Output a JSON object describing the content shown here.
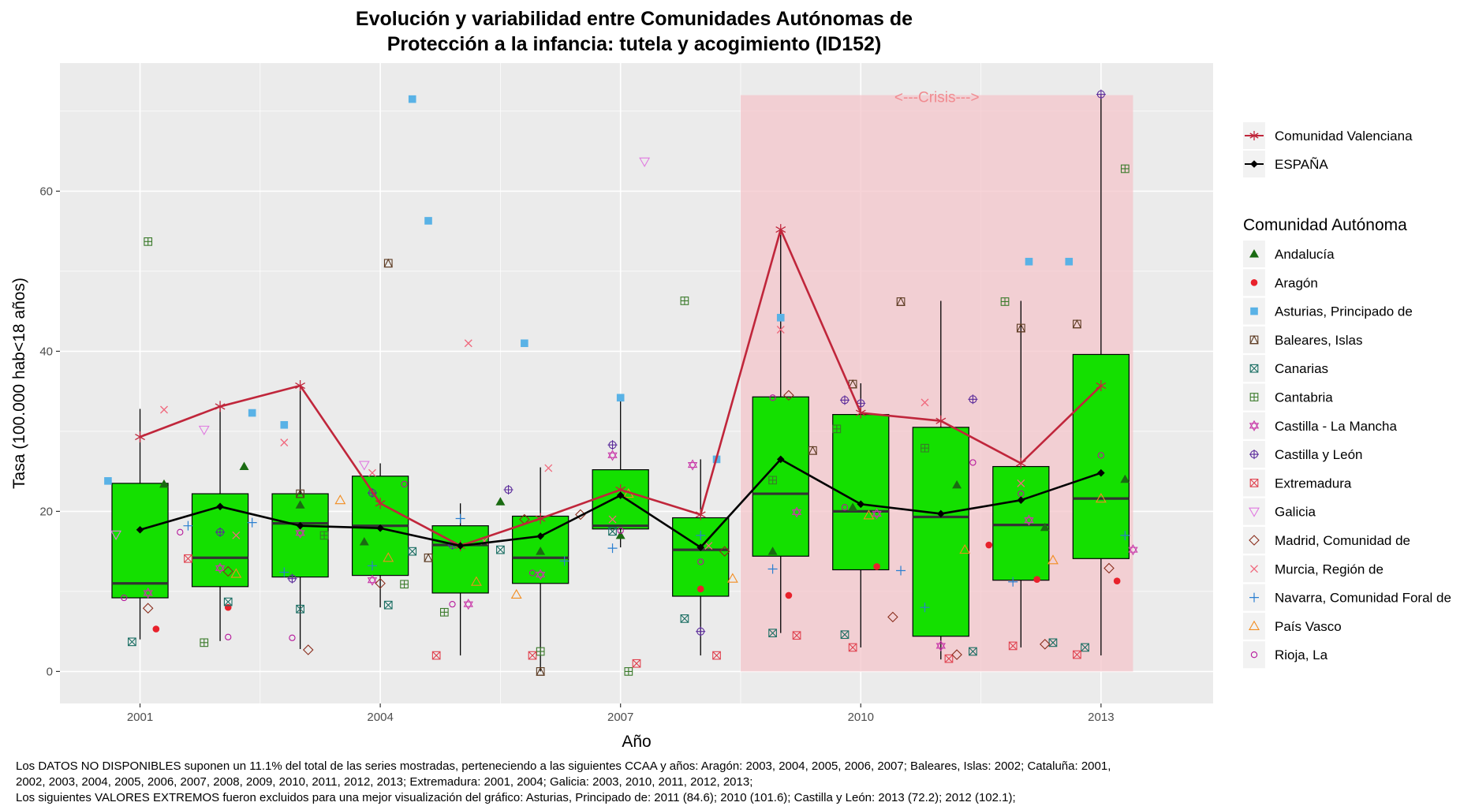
{
  "chart_data": {
    "type": "box",
    "title_line1": "Evolución y variabilidad entre Comunidades Autónomas de",
    "title_line2": "Protección a la infancia: tutela y acogimiento (ID152)",
    "xlabel": "Año",
    "ylabel": "Tasa (100.000 hab<18 años)",
    "x_ticks": [
      2001,
      2004,
      2007,
      2010,
      2013
    ],
    "y_ticks": [
      0,
      20,
      40,
      60
    ],
    "xlim": [
      2000,
      2014.4
    ],
    "ylim": [
      -4,
      76
    ],
    "grid": true,
    "legend_position": "right",
    "crisis": {
      "label": "<---Crisis--->",
      "x_start": 2008.5,
      "x_end": 2013.4,
      "y_top": 72,
      "color": "#f4c6cb"
    },
    "boxes": [
      {
        "x": 2001,
        "q1": 9.2,
        "median": 11.0,
        "q3": 23.5,
        "whisker_low": 4.0,
        "whisker_high": 32.8
      },
      {
        "x": 2002,
        "q1": 10.6,
        "median": 14.2,
        "q3": 22.2,
        "whisker_low": 3.8,
        "whisker_high": 33.2
      },
      {
        "x": 2003,
        "q1": 11.8,
        "median": 18.5,
        "q3": 22.2,
        "whisker_low": 2.8,
        "whisker_high": 35.8
      },
      {
        "x": 2004,
        "q1": 12.0,
        "median": 18.2,
        "q3": 24.4,
        "whisker_low": 8.0,
        "whisker_high": 26.0
      },
      {
        "x": 2005,
        "q1": 9.8,
        "median": 15.8,
        "q3": 18.2,
        "whisker_low": 2.0,
        "whisker_high": 21.0
      },
      {
        "x": 2006,
        "q1": 11.0,
        "median": 14.2,
        "q3": 19.4,
        "whisker_low": 0.0,
        "whisker_high": 25.5
      },
      {
        "x": 2007,
        "q1": 17.8,
        "median": 18.2,
        "q3": 25.2,
        "whisker_low": 15.5,
        "whisker_high": 34.2
      },
      {
        "x": 2008,
        "q1": 9.4,
        "median": 15.2,
        "q3": 19.2,
        "whisker_low": 2.0,
        "whisker_high": 26.5
      },
      {
        "x": 2009,
        "q1": 14.4,
        "median": 22.2,
        "q3": 34.3,
        "whisker_low": 4.8,
        "whisker_high": 55.0
      },
      {
        "x": 2010,
        "q1": 12.7,
        "median": 20.0,
        "q3": 32.1,
        "whisker_low": 3.0,
        "whisker_high": 36.0
      },
      {
        "x": 2011,
        "q1": 4.4,
        "median": 19.3,
        "q3": 30.5,
        "whisker_low": 1.5,
        "whisker_high": 46.3
      },
      {
        "x": 2012,
        "q1": 11.4,
        "median": 18.3,
        "q3": 25.6,
        "whisker_low": 3.0,
        "whisker_high": 46.3
      },
      {
        "x": 2013,
        "q1": 14.1,
        "median": 21.6,
        "q3": 39.6,
        "whisker_low": 2.0,
        "whisker_high": 72.0
      }
    ],
    "espana_line": {
      "name": "ESPAÑA",
      "color": "#000000",
      "x": [
        2001,
        2002,
        2003,
        2004,
        2005,
        2006,
        2007,
        2008,
        2009,
        2010,
        2011,
        2012,
        2013
      ],
      "y": [
        17.7,
        20.6,
        18.2,
        17.9,
        15.7,
        16.9,
        22.0,
        15.5,
        26.5,
        20.9,
        19.7,
        21.4,
        24.8
      ]
    },
    "valenciana_line": {
      "name": "Comunidad Valenciana",
      "color": "#c0263b",
      "x": [
        2001,
        2002,
        2003,
        2004,
        2005,
        2006,
        2007,
        2008,
        2009,
        2010,
        2011,
        2012,
        2013
      ],
      "y": [
        29.3,
        33.1,
        35.7,
        21.0,
        15.7,
        19.1,
        22.7,
        19.6,
        55.2,
        32.3,
        31.3,
        26.0,
        35.7
      ]
    },
    "legend_series": [
      {
        "name": "Andalucía",
        "shape": "triangle-filled",
        "color": "#1a6b12"
      },
      {
        "name": "Aragón",
        "shape": "circle-filled",
        "color": "#e8212b"
      },
      {
        "name": "Asturias, Principado de",
        "shape": "square-filled",
        "color": "#59b2e6"
      },
      {
        "name": "Baleares, Islas",
        "shape": "square-triangle",
        "color": "#5c3a21"
      },
      {
        "name": "Canarias",
        "shape": "square-x",
        "color": "#1a6e63"
      },
      {
        "name": "Cantabria",
        "shape": "square-plus",
        "color": "#3a7a2a"
      },
      {
        "name": "Castilla - La Mancha",
        "shape": "star-david",
        "color": "#c93aa9"
      },
      {
        "name": "Castilla y León",
        "shape": "circle-plus",
        "color": "#5a2a9a"
      },
      {
        "name": "Extremadura",
        "shape": "square-cross",
        "color": "#e0424f"
      },
      {
        "name": "Galicia",
        "shape": "triangle-down",
        "color": "#e07ae0"
      },
      {
        "name": "Madrid, Comunidad de",
        "shape": "diamond",
        "color": "#8a2d1c"
      },
      {
        "name": "Murcia, Región de",
        "shape": "x",
        "color": "#f0687c"
      },
      {
        "name": "Navarra, Comunidad Foral de",
        "shape": "plus",
        "color": "#2b7fd1"
      },
      {
        "name": "País Vasco",
        "shape": "triangle-open",
        "color": "#f28c1f"
      },
      {
        "name": "Rioja, La",
        "shape": "circle-open",
        "color": "#b5169a"
      }
    ],
    "legend_title": "Comunidad Autónoma",
    "legend_lines": [
      {
        "name": "Comunidad Valenciana",
        "shape": "asterisk",
        "color": "#c0263b"
      },
      {
        "name": "ESPAÑA",
        "shape": "diamond-filled",
        "color": "#000000"
      }
    ],
    "points": [
      {
        "series": "Andalucía",
        "values": [
          [
            2001.3,
            23.4
          ],
          [
            2002.3,
            25.6
          ],
          [
            2003.0,
            20.8
          ],
          [
            2003.8,
            16.2
          ],
          [
            2005.5,
            21.2
          ],
          [
            2006.0,
            15.0
          ],
          [
            2007.0,
            17.0
          ],
          [
            2008.9,
            15.0
          ],
          [
            2009.9,
            20.5
          ],
          [
            2011.2,
            23.3
          ],
          [
            2012.3,
            18.0
          ],
          [
            2013.3,
            24.0
          ]
        ]
      },
      {
        "series": "Aragón",
        "values": [
          [
            2001.2,
            5.3
          ],
          [
            2002.1,
            8.0
          ],
          [
            2008.0,
            10.3
          ],
          [
            2009.1,
            9.5
          ],
          [
            2010.2,
            13.1
          ],
          [
            2011.6,
            15.8
          ],
          [
            2012.2,
            11.5
          ],
          [
            2013.2,
            11.3
          ]
        ]
      },
      {
        "series": "Asturias, Principado de",
        "values": [
          [
            2000.6,
            23.8
          ],
          [
            2002.4,
            32.3
          ],
          [
            2002.8,
            30.8
          ],
          [
            2004.4,
            71.5
          ],
          [
            2004.6,
            56.3
          ],
          [
            2005.8,
            41.0
          ],
          [
            2007.0,
            34.2
          ],
          [
            2008.2,
            26.5
          ],
          [
            2009.0,
            44.2
          ],
          [
            2012.1,
            51.2
          ],
          [
            2012.6,
            51.2
          ]
        ]
      },
      {
        "series": "Baleares, Islas",
        "values": [
          [
            2003.0,
            22.2
          ],
          [
            2004.1,
            51.0
          ],
          [
            2004.6,
            14.2
          ],
          [
            2006.0,
            0.0
          ],
          [
            2009.4,
            27.6
          ],
          [
            2009.9,
            35.9
          ],
          [
            2010.5,
            46.2
          ],
          [
            2012.0,
            42.9
          ],
          [
            2012.7,
            43.4
          ]
        ]
      },
      {
        "series": "Canarias",
        "values": [
          [
            2000.9,
            3.7
          ],
          [
            2002.1,
            8.7
          ],
          [
            2003.0,
            7.8
          ],
          [
            2004.1,
            8.3
          ],
          [
            2004.4,
            15.0
          ],
          [
            2005.5,
            15.2
          ],
          [
            2006.9,
            17.5
          ],
          [
            2007.8,
            6.6
          ],
          [
            2008.9,
            4.8
          ],
          [
            2009.8,
            4.6
          ],
          [
            2011.4,
            2.5
          ],
          [
            2012.4,
            3.6
          ],
          [
            2012.8,
            3.0
          ]
        ]
      },
      {
        "series": "Cantabria",
        "values": [
          [
            2001.1,
            53.7
          ],
          [
            2001.8,
            3.6
          ],
          [
            2003.3,
            17.0
          ],
          [
            2004.3,
            10.9
          ],
          [
            2004.8,
            7.4
          ],
          [
            2006.0,
            2.5
          ],
          [
            2007.1,
            0.0
          ],
          [
            2007.8,
            46.3
          ],
          [
            2008.9,
            23.9
          ],
          [
            2009.7,
            30.3
          ],
          [
            2010.8,
            27.9
          ],
          [
            2011.8,
            46.2
          ],
          [
            2013.3,
            62.8
          ]
        ]
      },
      {
        "series": "Castilla - La Mancha",
        "values": [
          [
            2001.1,
            9.8
          ],
          [
            2002.0,
            12.9
          ],
          [
            2003.0,
            17.3
          ],
          [
            2003.9,
            11.4
          ],
          [
            2005.1,
            8.4
          ],
          [
            2006.0,
            12.1
          ],
          [
            2006.9,
            27.0
          ],
          [
            2007.9,
            25.8
          ],
          [
            2009.2,
            19.9
          ],
          [
            2010.2,
            19.7
          ],
          [
            2011.0,
            3.2
          ],
          [
            2012.1,
            18.9
          ],
          [
            2013.4,
            15.2
          ]
        ]
      },
      {
        "series": "Castilla y León",
        "values": [
          [
            2002.0,
            17.4
          ],
          [
            2002.9,
            11.6
          ],
          [
            2003.9,
            22.3
          ],
          [
            2004.9,
            15.8
          ],
          [
            2005.6,
            22.7
          ],
          [
            2006.9,
            28.3
          ],
          [
            2008.0,
            5.0
          ],
          [
            2009.8,
            33.9
          ],
          [
            2010.0,
            33.5
          ],
          [
            2011.4,
            34.0
          ],
          [
            2013.0,
            72.1
          ]
        ]
      },
      {
        "series": "Extremadura",
        "values": [
          [
            2001.6,
            14.1
          ],
          [
            2004.7,
            2.0
          ],
          [
            2005.9,
            2.0
          ],
          [
            2007.2,
            1.0
          ],
          [
            2008.2,
            2.0
          ],
          [
            2009.2,
            4.5
          ],
          [
            2009.9,
            3.0
          ],
          [
            2011.1,
            1.6
          ],
          [
            2011.9,
            3.2
          ],
          [
            2012.7,
            2.1
          ]
        ]
      },
      {
        "series": "Galicia",
        "values": [
          [
            2000.7,
            17.1
          ],
          [
            2001.8,
            30.2
          ],
          [
            2003.8,
            25.8
          ],
          [
            2007.3,
            63.7
          ]
        ]
      },
      {
        "series": "Madrid, Comunidad de",
        "values": [
          [
            2001.1,
            7.9
          ],
          [
            2002.1,
            12.5
          ],
          [
            2003.1,
            2.7
          ],
          [
            2004.0,
            11.0
          ],
          [
            2005.8,
            19.0
          ],
          [
            2006.5,
            19.6
          ],
          [
            2008.3,
            15.0
          ],
          [
            2009.1,
            34.5
          ],
          [
            2010.4,
            6.8
          ],
          [
            2011.2,
            2.1
          ],
          [
            2012.3,
            3.4
          ],
          [
            2013.1,
            12.9
          ]
        ]
      },
      {
        "series": "Murcia, Región de",
        "values": [
          [
            2001.3,
            32.7
          ],
          [
            2002.2,
            17.0
          ],
          [
            2002.8,
            28.6
          ],
          [
            2003.9,
            24.8
          ],
          [
            2005.1,
            41.0
          ],
          [
            2005.3,
            16.3
          ],
          [
            2006.1,
            25.4
          ],
          [
            2006.9,
            19.0
          ],
          [
            2008.1,
            15.7
          ],
          [
            2009.0,
            42.7
          ],
          [
            2010.8,
            33.6
          ],
          [
            2012.0,
            23.5
          ]
        ]
      },
      {
        "series": "Navarra, Comunidad Foral de",
        "values": [
          [
            2001.6,
            18.2
          ],
          [
            2002.4,
            18.6
          ],
          [
            2002.8,
            12.4
          ],
          [
            2003.9,
            13.2
          ],
          [
            2005.0,
            19.1
          ],
          [
            2006.3,
            13.8
          ],
          [
            2006.9,
            15.4
          ],
          [
            2008.0,
            17.0
          ],
          [
            2008.9,
            12.8
          ],
          [
            2010.5,
            12.6
          ],
          [
            2010.8,
            8.0
          ],
          [
            2011.9,
            11.2
          ],
          [
            2013.3,
            17.0
          ]
        ]
      },
      {
        "series": "País Vasco",
        "values": [
          [
            2002.2,
            12.2
          ],
          [
            2003.5,
            21.4
          ],
          [
            2004.1,
            14.2
          ],
          [
            2005.2,
            11.2
          ],
          [
            2005.7,
            9.6
          ],
          [
            2007.1,
            22.2
          ],
          [
            2008.4,
            11.6
          ],
          [
            2010.1,
            19.5
          ],
          [
            2011.3,
            15.2
          ],
          [
            2012.4,
            13.9
          ],
          [
            2013.0,
            21.6
          ]
        ]
      },
      {
        "series": "Rioja, La",
        "values": [
          [
            2000.8,
            9.2
          ],
          [
            2001.5,
            17.4
          ],
          [
            2002.1,
            4.3
          ],
          [
            2002.9,
            4.2
          ],
          [
            2004.3,
            23.4
          ],
          [
            2004.9,
            8.4
          ],
          [
            2005.9,
            12.3
          ],
          [
            2007.0,
            17.6
          ],
          [
            2008.0,
            13.7
          ],
          [
            2008.9,
            34.2
          ],
          [
            2009.8,
            20.5
          ],
          [
            2011.4,
            26.1
          ],
          [
            2012.0,
            22.2
          ],
          [
            2013.0,
            27.0
          ]
        ]
      }
    ]
  },
  "footnote": {
    "line1": "Los DATOS NO DISPONIBLES suponen un 11.1% del total de las series mostradas, perteneciendo a las siguientes CCAA y años: Aragón: 2003, 2004, 2005, 2006, 2007; Baleares, Islas: 2002; Cataluña: 2001,",
    "line2": " 2002, 2003, 2004, 2005, 2006, 2007, 2008, 2009, 2010, 2011, 2012, 2013; Extremadura: 2001, 2004; Galicia: 2003, 2010, 2011, 2012, 2013;",
    "line3": "Los siguientes VALORES EXTREMOS fueron excluidos para una mejor visualización del gráfico: Asturias, Principado de: 2011 (84.6); 2010 (101.6); Castilla y León: 2013 (72.2); 2012 (102.1);"
  }
}
